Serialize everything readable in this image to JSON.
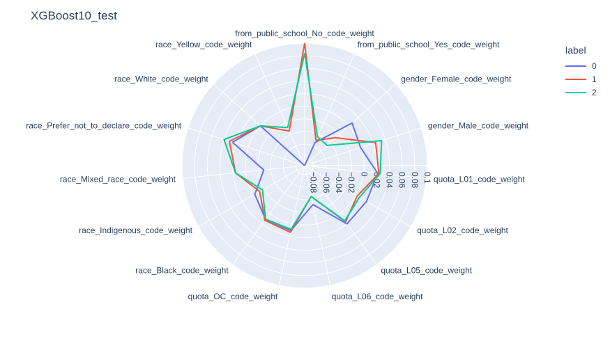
{
  "chart_data": {
    "type": "radar",
    "title": "XGBoost10_test",
    "legend_title": "label",
    "legend_position": "top-right",
    "theta": [
      "from_public_school_No_code_weight",
      "from_public_school_Yes_code_weight",
      "gender_Female_code_weight",
      "gender_Male_code_weight",
      "quota_L01_code_weight",
      "quota_L02_code_weight",
      "quota_L05_code_weight",
      "quota_L06_code_weight",
      "quota_OC_code_weight",
      "race_Black_code_weight",
      "race_Indigenous_code_weight",
      "race_Mixed_race_code_weight",
      "race_Prefer_not_to_declare_code_weight",
      "race_White_code_weight",
      "race_Yellow_code_weight"
    ],
    "radial_range": [
      -0.094,
      0.1
    ],
    "radial_ticks": [
      "−0.08",
      "−0.06",
      "−0.04",
      "−0.02",
      "0",
      "0.02",
      "0.04",
      "0.06",
      "0.08",
      "0.1"
    ],
    "radial_tick_values": [
      -0.08,
      -0.06,
      -0.04,
      -0.02,
      0,
      0.02,
      0.04,
      0.06,
      0.08,
      0.1
    ],
    "grid": true,
    "series": [
      {
        "name": "0",
        "color": "#636efa",
        "values": [
          -0.094,
          -0.054,
          0.007,
          -0.001,
          0.022,
          0.019,
          0.02,
          -0.031,
          0.011,
          0.011,
          -0.003,
          -0.029,
          0.026,
          0.0,
          -0.094
        ]
      },
      {
        "name": "1",
        "color": "#ef553b",
        "values": [
          0.1,
          -0.05,
          -0.028,
          0.024,
          0.024,
          0.002,
          0.016,
          -0.044,
          0.014,
          0.013,
          -0.012,
          0.016,
          0.031,
          0.0,
          -0.034
        ]
      },
      {
        "name": "2",
        "color": "#00cc96",
        "values": [
          0.084,
          -0.044,
          -0.046,
          0.034,
          0.026,
          0.006,
          0.014,
          -0.044,
          0.009,
          0.011,
          -0.017,
          0.016,
          0.04,
          0.0,
          -0.028
        ]
      }
    ]
  }
}
